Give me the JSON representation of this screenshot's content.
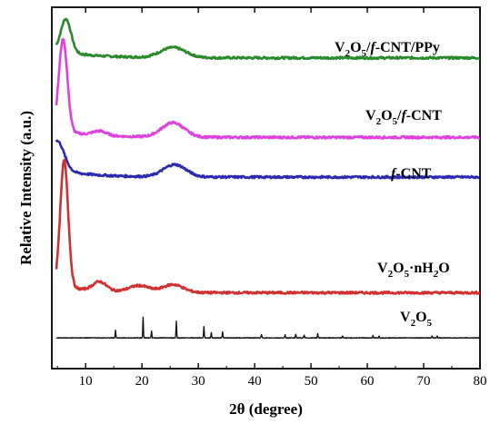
{
  "chart_data": {
    "type": "line",
    "xlabel": "2θ (degree)",
    "ylabel": "Relative Intensity (a.u.)",
    "xlim": [
      4,
      80
    ],
    "xticks": [
      10,
      20,
      30,
      40,
      50,
      60,
      70,
      80
    ],
    "y_ticks_labeled": false,
    "grid": false,
    "legend": "labels placed beside each trace",
    "stacked_offset": true,
    "series": [
      {
        "name": "V₂O₅/f-CNT/PPy",
        "label_main": "V",
        "label_parts": [
          "V",
          "2",
          "O",
          "5",
          "/",
          "f",
          "-CNT/PPy"
        ],
        "color": "#2a8a2a",
        "baseline": 0.86,
        "peaks": [
          [
            6.5,
            0.092,
            0.9
          ],
          [
            25.5,
            0.028,
            2.2
          ]
        ],
        "x": [
          5,
          6.5,
          8,
          10,
          15,
          20,
          25.5,
          30,
          40,
          60,
          80
        ],
        "y": [
          0.9,
          0.952,
          0.905,
          0.885,
          0.88,
          0.882,
          0.895,
          0.875,
          0.868,
          0.866,
          0.864
        ]
      },
      {
        "name": "V₂O₅/f-CNT",
        "label_parts": [
          "V",
          "2",
          "O",
          "5",
          "/",
          "f",
          "-CNT"
        ],
        "color": "#e040e0",
        "baseline": 0.64,
        "peaks": [
          [
            6.0,
            0.255,
            0.75
          ],
          [
            12.5,
            0.012,
            1.2
          ],
          [
            25.5,
            0.04,
            2.0
          ]
        ],
        "x": [
          5,
          6.0,
          8,
          12.5,
          20,
          25.5,
          30,
          40,
          60,
          80
        ],
        "y": [
          0.69,
          0.91,
          0.69,
          0.67,
          0.665,
          0.695,
          0.655,
          0.646,
          0.642,
          0.64
        ]
      },
      {
        "name": "f-CNT",
        "label_parts": [
          "",
          "",
          "",
          "",
          "",
          "f",
          "-CNT"
        ],
        "color": "#2a2ab0",
        "baseline": 0.53,
        "peaks": [
          [
            5.0,
            0.08,
            1.2
          ],
          [
            25.8,
            0.034,
            2.0
          ]
        ],
        "x": [
          4.5,
          5,
          8,
          15,
          20,
          25.8,
          30,
          40,
          60,
          80
        ],
        "y": [
          0.61,
          0.615,
          0.565,
          0.545,
          0.548,
          0.58,
          0.545,
          0.536,
          0.532,
          0.53
        ]
      },
      {
        "name": "V₂O₅·nH₂O",
        "label_parts": [
          "V",
          "2",
          "O",
          "5",
          "·nH",
          "2",
          "O"
        ],
        "color": "#d03030",
        "baseline": 0.21,
        "peaks": [
          [
            6.2,
            0.35,
            0.7
          ],
          [
            12.5,
            0.025,
            1.2
          ],
          [
            19.5,
            0.018,
            1.8
          ],
          [
            25.5,
            0.022,
            1.8
          ]
        ],
        "x": [
          5,
          6.2,
          8,
          12.5,
          19.5,
          25.5,
          30,
          40,
          60,
          80
        ],
        "y": [
          0.3,
          0.58,
          0.3,
          0.26,
          0.25,
          0.25,
          0.23,
          0.22,
          0.215,
          0.21
        ]
      },
      {
        "name": "V₂O₅",
        "label_parts": [
          "V",
          "2",
          "O",
          "5",
          "",
          "",
          ""
        ],
        "color": "#111111",
        "baseline": 0.085,
        "peaks": [
          [
            15.3,
            0.022
          ],
          [
            20.2,
            0.058
          ],
          [
            21.7,
            0.02
          ],
          [
            26.1,
            0.046
          ],
          [
            31.0,
            0.032
          ],
          [
            32.3,
            0.015
          ],
          [
            34.3,
            0.018
          ],
          [
            41.2,
            0.01
          ],
          [
            45.4,
            0.008
          ],
          [
            47.3,
            0.01
          ],
          [
            48.8,
            0.007
          ],
          [
            51.2,
            0.012
          ],
          [
            55.6,
            0.006
          ],
          [
            61.0,
            0.007
          ],
          [
            62.1,
            0.006
          ],
          [
            71.5,
            0.006
          ],
          [
            72.4,
            0.005
          ]
        ],
        "x": [
          5,
          15.3,
          20.2,
          26.1,
          31.0,
          34.3,
          51.2,
          80
        ],
        "y": [
          0.085,
          0.107,
          0.143,
          0.131,
          0.117,
          0.103,
          0.097,
          0.085
        ]
      }
    ]
  }
}
